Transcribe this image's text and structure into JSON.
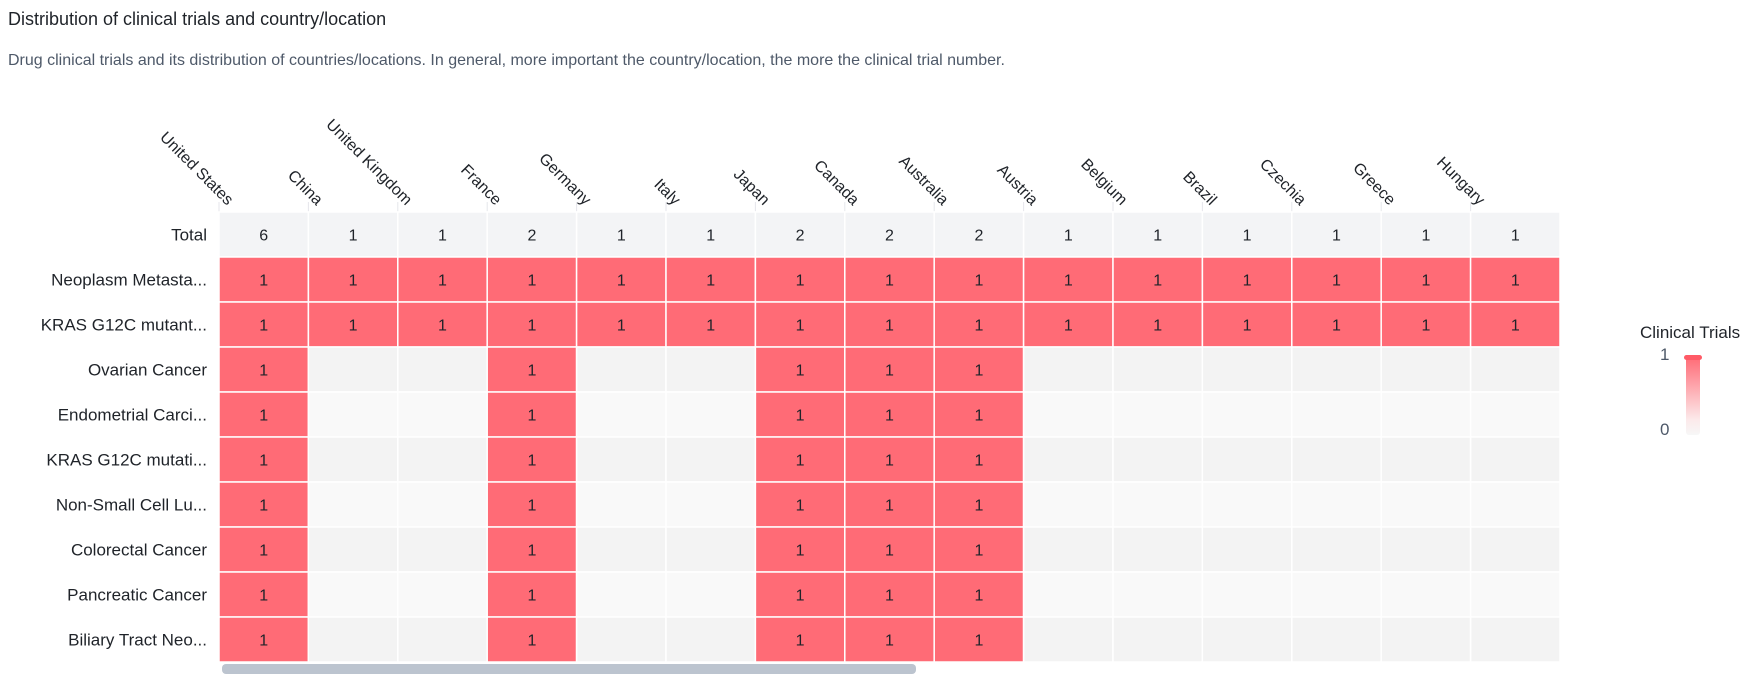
{
  "header": {
    "title": "Distribution of clinical trials and country/location",
    "subtitle": "Drug clinical trials and its distribution of countries/locations. In general, more important the country/location, the more the clinical trial number."
  },
  "legend": {
    "title": "Clinical Trials",
    "max": "1",
    "min": "0"
  },
  "colors": {
    "high": "#ff6b76",
    "total_row": "#f3f4f6",
    "empty_a": "#f9f9f9",
    "empty_b": "#f3f3f3",
    "grid": "#ffffff",
    "scroll_thumb": "#bcc4cf"
  },
  "chart_data": {
    "type": "heatmap",
    "columns": [
      "United States",
      "China",
      "United Kingdom",
      "France",
      "Germany",
      "Italy",
      "Japan",
      "Canada",
      "Australia",
      "Austria",
      "Belgium",
      "Brazil",
      "Czechia",
      "Greece",
      "Hungary"
    ],
    "total_label": "Total",
    "totals": [
      6,
      1,
      1,
      2,
      1,
      1,
      2,
      2,
      2,
      1,
      1,
      1,
      1,
      1,
      1
    ],
    "rows": [
      {
        "label": "Neoplasm Metasta...",
        "values": [
          1,
          1,
          1,
          1,
          1,
          1,
          1,
          1,
          1,
          1,
          1,
          1,
          1,
          1,
          1
        ]
      },
      {
        "label": "KRAS G12C mutant...",
        "values": [
          1,
          1,
          1,
          1,
          1,
          1,
          1,
          1,
          1,
          1,
          1,
          1,
          1,
          1,
          1
        ]
      },
      {
        "label": "Ovarian Cancer",
        "values": [
          1,
          null,
          null,
          1,
          null,
          null,
          1,
          1,
          1,
          null,
          null,
          null,
          null,
          null,
          null
        ]
      },
      {
        "label": "Endometrial Carci...",
        "values": [
          1,
          null,
          null,
          1,
          null,
          null,
          1,
          1,
          1,
          null,
          null,
          null,
          null,
          null,
          null
        ]
      },
      {
        "label": "KRAS G12C mutati...",
        "values": [
          1,
          null,
          null,
          1,
          null,
          null,
          1,
          1,
          1,
          null,
          null,
          null,
          null,
          null,
          null
        ]
      },
      {
        "label": "Non-Small Cell Lu...",
        "values": [
          1,
          null,
          null,
          1,
          null,
          null,
          1,
          1,
          1,
          null,
          null,
          null,
          null,
          null,
          null
        ]
      },
      {
        "label": "Colorectal Cancer",
        "values": [
          1,
          null,
          null,
          1,
          null,
          null,
          1,
          1,
          1,
          null,
          null,
          null,
          null,
          null,
          null
        ]
      },
      {
        "label": "Pancreatic Cancer",
        "values": [
          1,
          null,
          null,
          1,
          null,
          null,
          1,
          1,
          1,
          null,
          null,
          null,
          null,
          null,
          null
        ]
      },
      {
        "label": "Biliary Tract Neo...",
        "values": [
          1,
          null,
          null,
          1,
          null,
          null,
          1,
          1,
          1,
          null,
          null,
          null,
          null,
          null,
          null
        ]
      }
    ],
    "value_range": [
      0,
      1
    ]
  }
}
